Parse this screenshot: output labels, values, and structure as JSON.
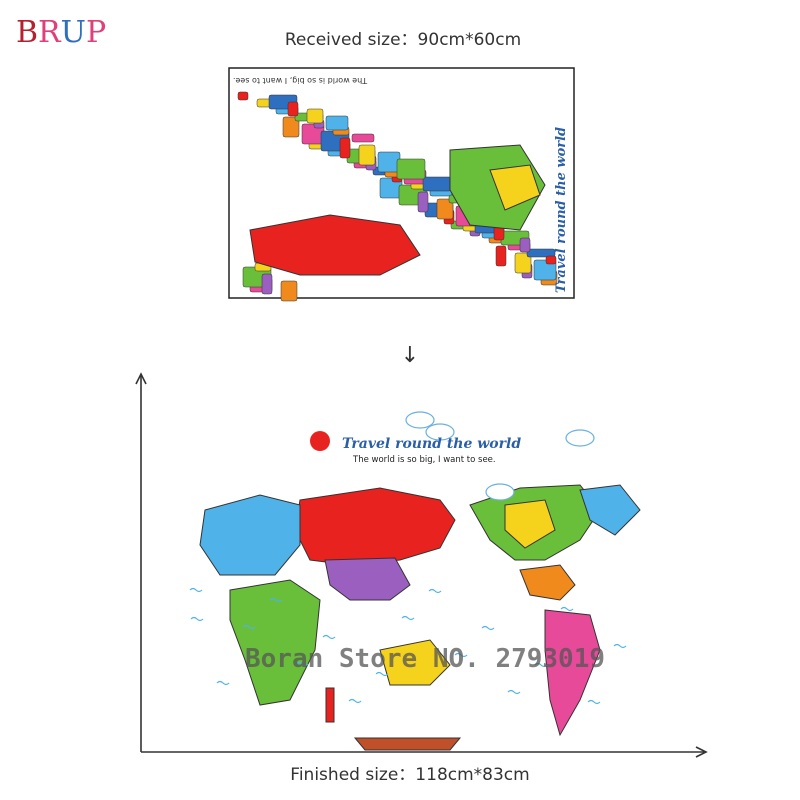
{
  "brand": {
    "letters": [
      "B",
      "R",
      "U",
      "P"
    ]
  },
  "received": {
    "label": "Received size：90cm*60cm"
  },
  "small_map": {
    "title": "Travel round the world",
    "subtitle": "The world is so big, I want to see."
  },
  "arrow": "↓",
  "large_map": {
    "title": "Travel round the world",
    "subtitle": "The world is so big, I want to see."
  },
  "watermark": "Boran Store NO. 2793019",
  "finished": {
    "label": "Finished size：118cm*83cm"
  }
}
